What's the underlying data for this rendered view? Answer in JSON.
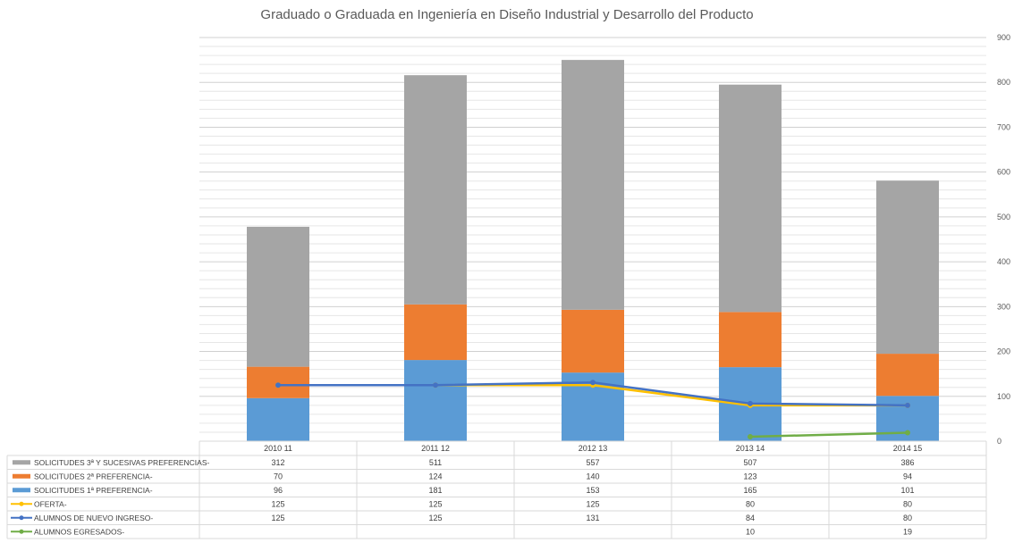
{
  "chart_data": {
    "type": "bar",
    "title": "Graduado o Graduada en Ingeniería en Diseño Industrial y Desarrollo del Producto",
    "categories": [
      "2010 11",
      "2011 12",
      "2012 13",
      "2013 14",
      "2014 15"
    ],
    "ylim": [
      0,
      900
    ],
    "yticks": [
      0,
      100,
      200,
      300,
      400,
      500,
      600,
      700,
      800,
      900
    ],
    "grid": true,
    "legend": "data-table-left",
    "series": [
      {
        "name": "SOLICITUDES 3ª Y SUCESIVAS PREFERENCIAS-",
        "kind": "stacked-bar",
        "color": "#a5a5a5",
        "values": [
          312,
          511,
          557,
          507,
          386
        ]
      },
      {
        "name": "SOLICITUDES 2ª PREFERENCIA-",
        "kind": "stacked-bar",
        "color": "#ed7d31",
        "values": [
          70,
          124,
          140,
          123,
          94
        ]
      },
      {
        "name": "SOLICITUDES 1ª PREFERENCIA-",
        "kind": "stacked-bar",
        "color": "#5b9bd5",
        "values": [
          96,
          181,
          153,
          165,
          101
        ]
      },
      {
        "name": "OFERTA-",
        "kind": "line",
        "color": "#ffc000",
        "values": [
          125,
          125,
          125,
          80,
          80
        ]
      },
      {
        "name": "ALUMNOS DE NUEVO INGRESO-",
        "kind": "line",
        "color": "#4472c4",
        "values": [
          125,
          125,
          131,
          84,
          80
        ]
      },
      {
        "name": "ALUMNOS EGRESADOS-",
        "kind": "line",
        "color": "#70ad47",
        "values": [
          null,
          null,
          null,
          10,
          19
        ]
      }
    ]
  }
}
